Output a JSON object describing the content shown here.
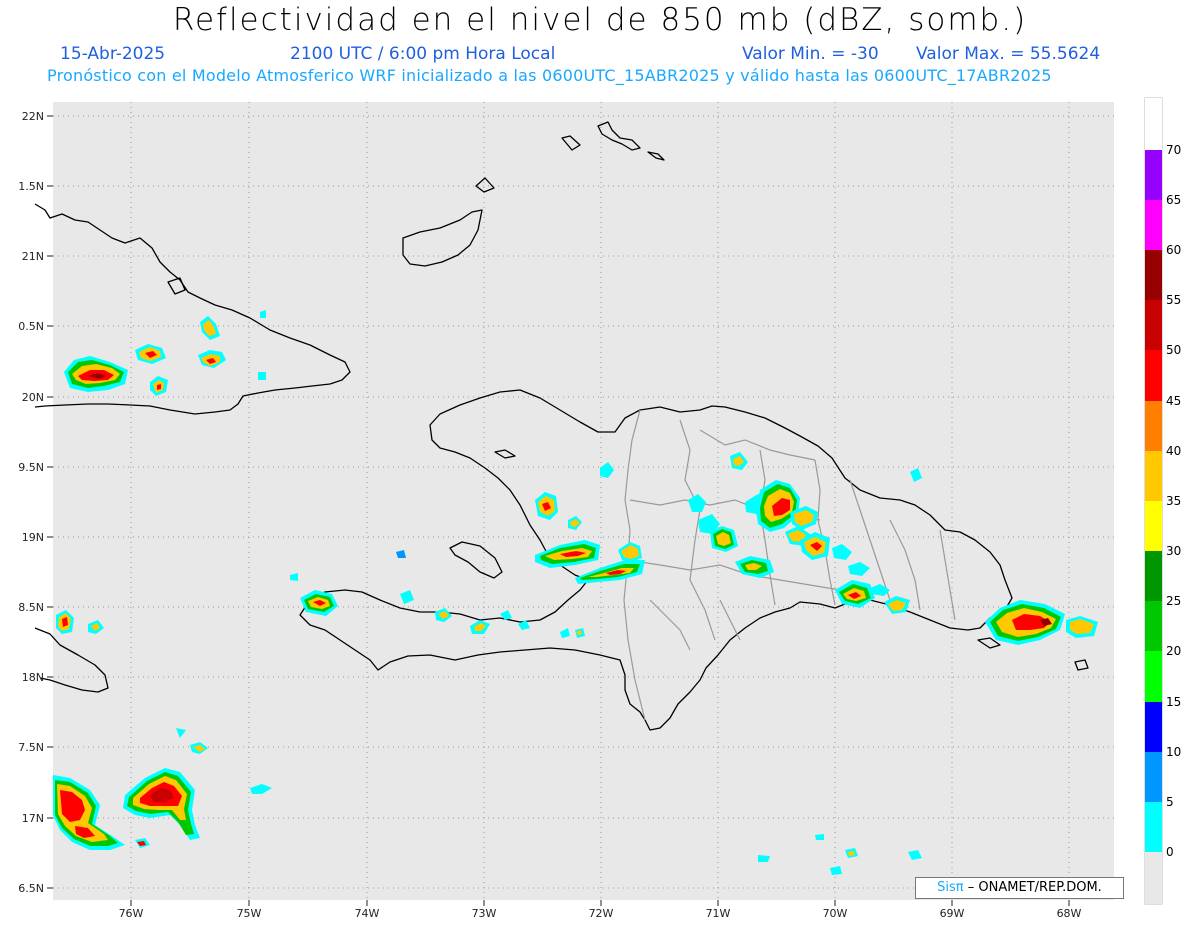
{
  "header": {
    "title": "Reflectividad en el nivel de 850 mb (dBZ, somb.)",
    "date": "15-Abr-2025",
    "time": "2100 UTC / 6:00 pm Hora Local",
    "min": "Valor Min. = -30",
    "max": "Valor Max. = 55.5624",
    "subtitle": "Pronóstico con el Modelo Atmosferico WRF inicializado a las 0600UTC_15ABR2025 y válido hasta las  0600UTC_17ABR2025"
  },
  "axes": {
    "lat_labels": [
      "22N",
      "1.5N",
      "21N",
      "0.5N",
      "20N",
      "9.5N",
      "19N",
      "8.5N",
      "18N",
      "7.5N",
      "17N",
      "6.5N"
    ],
    "lon_labels": [
      "76W",
      "75W",
      "74W",
      "73W",
      "72W",
      "71W",
      "70W",
      "69W",
      "68W"
    ]
  },
  "colorbar": {
    "labels": [
      "70",
      "65",
      "60",
      "55",
      "50",
      "45",
      "40",
      "35",
      "30",
      "25",
      "20",
      "15",
      "10",
      "5",
      "0"
    ],
    "colors": [
      "#9600ff",
      "#ff00ff",
      "#960000",
      "#c80000",
      "#ff0000",
      "#ff8000",
      "#ffc800",
      "#ffff00",
      "#009600",
      "#00c800",
      "#00ff00",
      "#0000ff",
      "#0096ff",
      "#00ffff",
      "#ffffff"
    ]
  },
  "credit": {
    "brand": "Sisπ",
    "text": "– ONAMET/REP.DOM."
  }
}
